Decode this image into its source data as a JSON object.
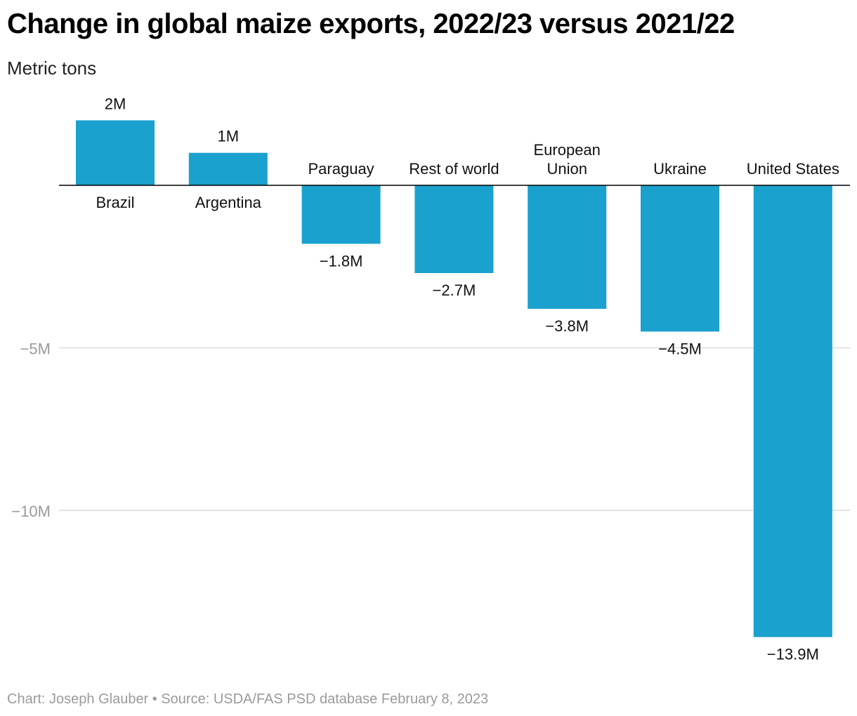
{
  "title": "Change in global maize exports, 2022/23 versus 2021/22",
  "subtitle": "Metric tons",
  "footer": "Chart: Joseph Glauber • Source: USDA/FAS PSD database February 8, 2023",
  "colors": {
    "bar": "#1aa1ce",
    "grid": "#e3e3e3",
    "axis_label": "#9a9a9a",
    "zero_line": "#000000"
  },
  "chart_data": {
    "type": "bar",
    "title": "Change in global maize exports, 2022/23 versus 2021/22",
    "ylabel": "Metric tons",
    "xlabel": "",
    "categories": [
      [
        "Brazil"
      ],
      [
        "Argentina"
      ],
      [
        "Paraguay"
      ],
      [
        "Rest of world"
      ],
      [
        "European",
        "Union"
      ],
      [
        "Ukraine"
      ],
      [
        "United States"
      ]
    ],
    "values": [
      2,
      1,
      -1.8,
      -2.7,
      -3.8,
      -4.5,
      -13.9
    ],
    "value_labels": [
      "2M",
      "1M",
      "−1.8M",
      "−2.7M",
      "−3.8M",
      "−4.5M",
      "−13.9M"
    ],
    "unit": "million metric tons",
    "yticks": [
      -5,
      -10
    ],
    "ytick_labels": [
      "−5M",
      "−10M"
    ],
    "ylim": [
      -14,
      2
    ],
    "grid": true
  }
}
